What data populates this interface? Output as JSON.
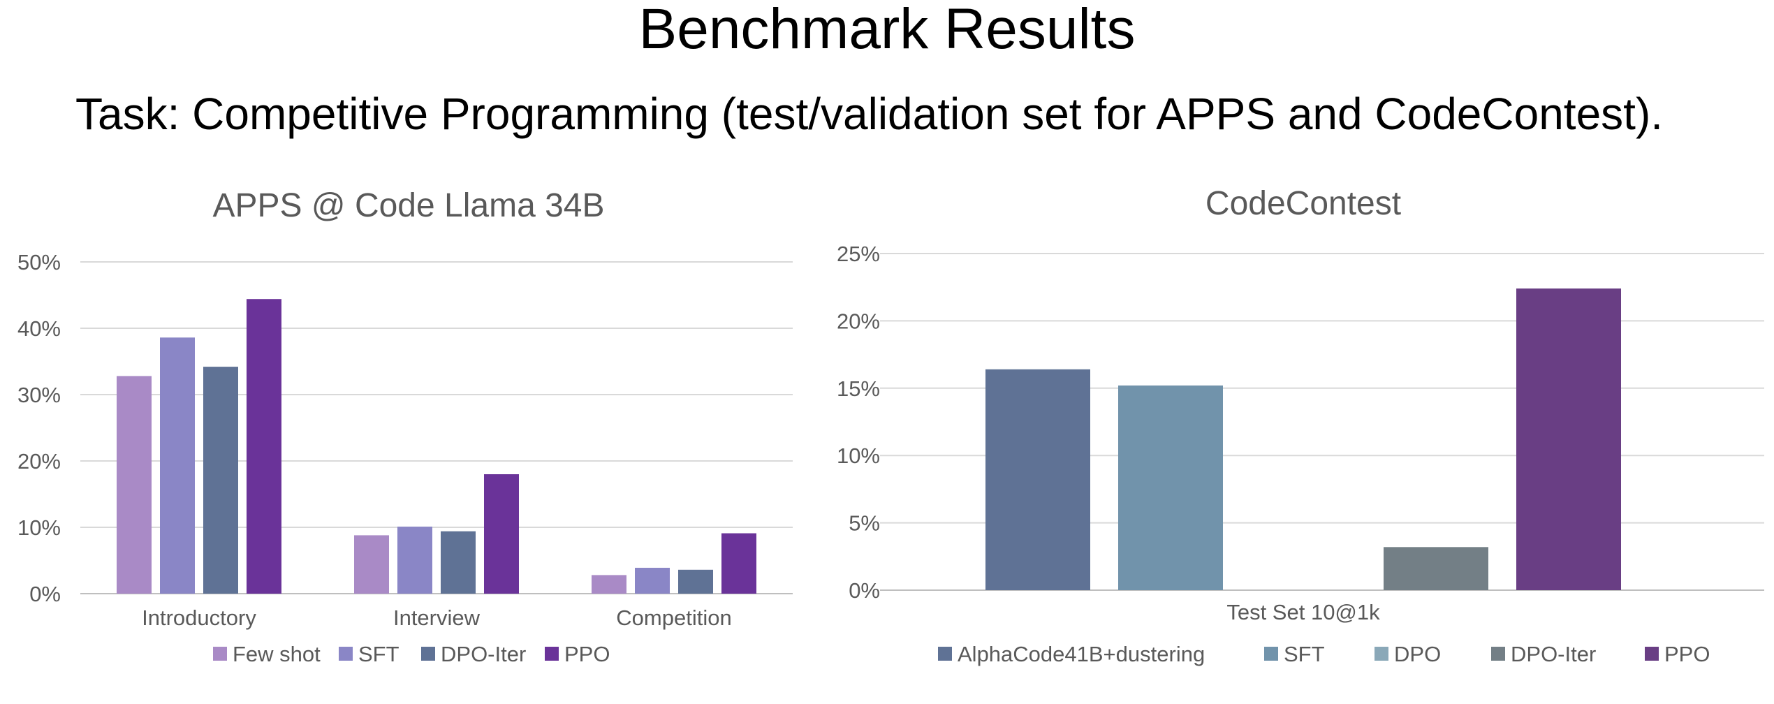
{
  "header": {
    "title": "Benchmark Results",
    "subtitle": "Task: Competitive Programming (test/validation set for APPS and CodeContest)."
  },
  "chart_data": [
    {
      "type": "bar",
      "title": "APPS @ Code Llama 34B",
      "categories": [
        "Introductory",
        "Interview",
        "Competition"
      ],
      "ylim": [
        0,
        50
      ],
      "yticks": [
        "0%",
        "10%",
        "20%",
        "30%",
        "40%",
        "50%"
      ],
      "grid": true,
      "legend_position": "bottom",
      "series": [
        {
          "name": "Few shot",
          "color": "#a98ac6",
          "values": [
            32.8,
            8.8,
            2.8
          ]
        },
        {
          "name": "SFT",
          "color": "#8a86c6",
          "values": [
            38.6,
            10.1,
            3.9
          ]
        },
        {
          "name": "DPO-Iter",
          "color": "#5f7295",
          "values": [
            34.2,
            9.4,
            3.6
          ]
        },
        {
          "name": "PPO",
          "color": "#6a3399",
          "values": [
            44.4,
            18.0,
            9.1
          ]
        }
      ]
    },
    {
      "type": "bar",
      "title": "CodeContest",
      "categories": [
        "Test Set 10@1k"
      ],
      "ylim": [
        0,
        25
      ],
      "yticks": [
        "0%",
        "5%",
        "10%",
        "15%",
        "20%",
        "25%"
      ],
      "grid": true,
      "legend_position": "bottom",
      "series": [
        {
          "name": "AlphaCode41B+dustering",
          "color": "#5f7295",
          "values": [
            16.4
          ]
        },
        {
          "name": "SFT",
          "color": "#7193ab",
          "values": [
            15.2
          ]
        },
        {
          "name": "DPO",
          "color": "#8aa8b8",
          "values": [
            0
          ]
        },
        {
          "name": "DPO-Iter",
          "color": "#737f86",
          "values": [
            3.2
          ]
        },
        {
          "name": "PPO",
          "color": "#693e84",
          "values": [
            22.4
          ]
        }
      ]
    }
  ]
}
